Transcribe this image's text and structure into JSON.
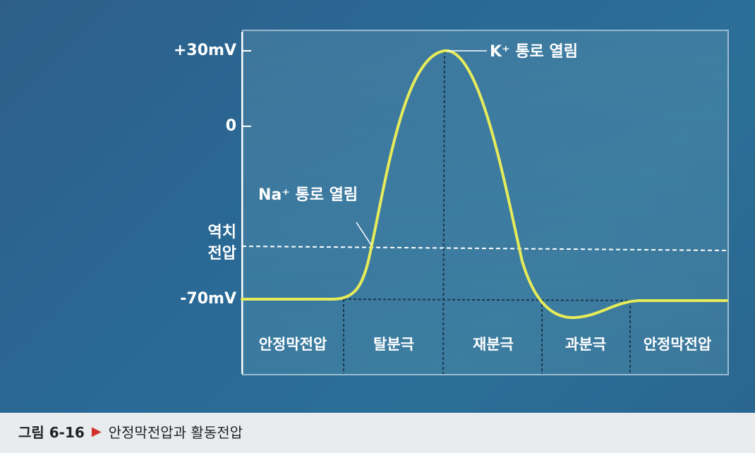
{
  "diagram": {
    "y_labels": {
      "plus30": "+30mV",
      "zero": "0",
      "threshold_line1": "역치",
      "threshold_line2": "전압",
      "minus70": "-70mV"
    },
    "annotations": {
      "k_open": "K⁺ 통로 열림",
      "na_open": "Na⁺ 통로 열림"
    },
    "phases": [
      "안정막전압",
      "탈분극",
      "재분극",
      "과분극",
      "안정막전압"
    ],
    "colors": {
      "curve": "#e6eb5a",
      "background": "#2a6690",
      "lines": "#ffffff"
    }
  },
  "caption": {
    "figure": "그림 6-16",
    "title": "안정막전압과 활동전압"
  }
}
